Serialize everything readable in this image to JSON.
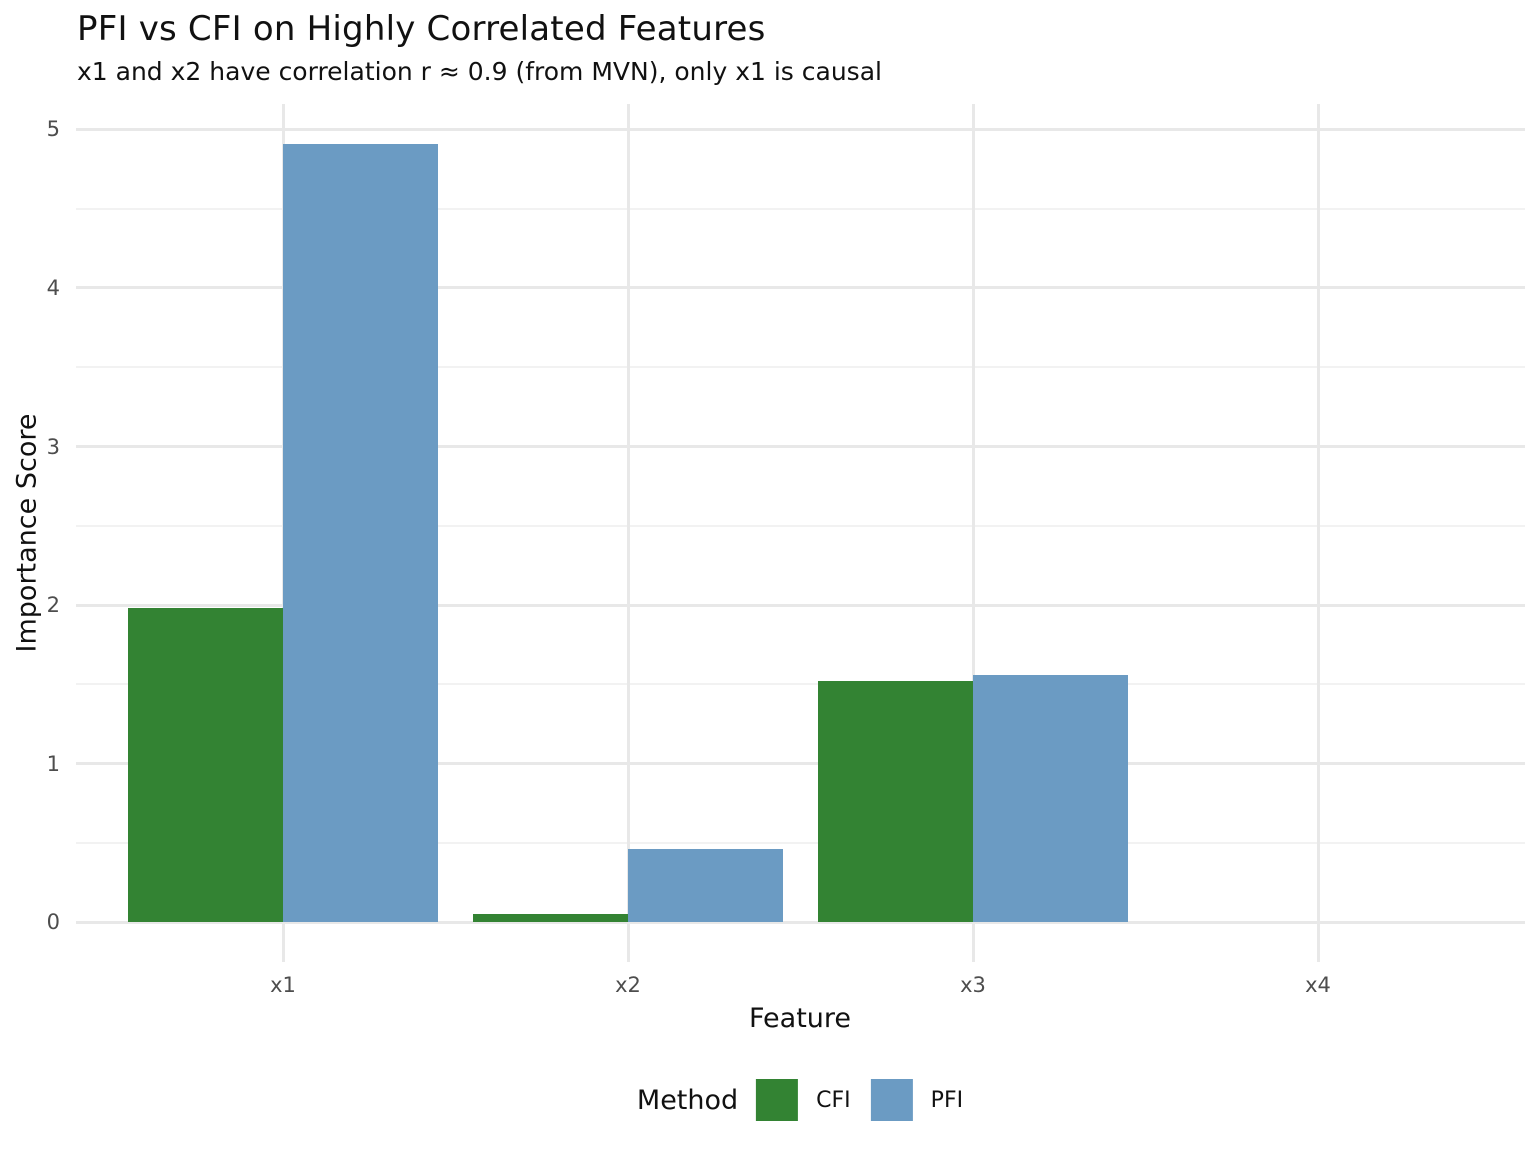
{
  "chart_data": {
    "type": "bar",
    "title": "PFI vs CFI on Highly Correlated Features",
    "subtitle": "x1 and x2 have correlation r ≈ 0.9 (from MVN), only x1 is causal",
    "xlabel": "Feature",
    "ylabel": "Importance Score",
    "categories": [
      "x1",
      "x2",
      "x3",
      "x4"
    ],
    "series": [
      {
        "name": "CFI",
        "color": "#338333",
        "values": [
          1.98,
          0.05,
          1.52,
          0
        ]
      },
      {
        "name": "PFI",
        "color": "#6b9bc3",
        "values": [
          4.91,
          0.46,
          1.56,
          0
        ]
      }
    ],
    "legend_title": "Method",
    "legend_position": "bottom",
    "yticks": [
      0,
      1,
      2,
      3,
      4,
      5
    ],
    "minor_tick_step": 0.5,
    "ylim": [
      -0.25,
      5.16
    ],
    "grid": "on",
    "colors": {
      "grid_major": "#e8e8e8",
      "grid_minor": "#f2f2f2",
      "tick_text": "#4d4d4d",
      "text": "#111111",
      "background": "#ffffff"
    }
  }
}
